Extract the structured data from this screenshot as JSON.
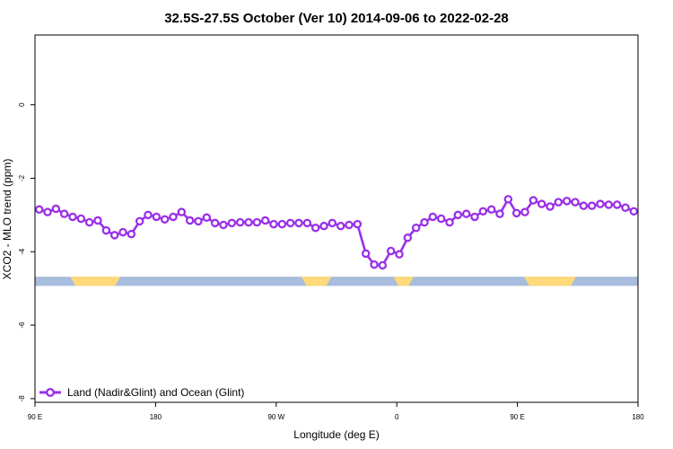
{
  "chart_data": {
    "type": "line",
    "title": "32.5S-27.5S October (Ver 10)   2014-09-06 to 2022-02-28",
    "xlabel": "Longitude (deg E)",
    "ylabel": "XCO2 - MLO trend (ppm)",
    "xlim": [
      90,
      450
    ],
    "ylim": [
      -8.1,
      1.9
    ],
    "x_ticks": [
      {
        "value": 90,
        "label": "90 E"
      },
      {
        "value": 162,
        "label": "180"
      },
      {
        "value": 234,
        "label": "90 W"
      },
      {
        "value": 306,
        "label": "0"
      },
      {
        "value": 378,
        "label": "90 E"
      },
      {
        "value": 450,
        "label": "180"
      }
    ],
    "y_ticks": [
      {
        "value": 0,
        "label": "0"
      },
      {
        "value": -2,
        "label": "-2"
      },
      {
        "value": -4,
        "label": "-4"
      },
      {
        "value": -6,
        "label": "-6"
      },
      {
        "value": -8,
        "label": "-8"
      }
    ],
    "legend_position": "bottom-left",
    "grid": false,
    "colors": {
      "series": "#9b30e8",
      "ocean": "#a8bcdd",
      "land": "#ffd97a"
    },
    "surface_band": {
      "y_range": [
        -4.93,
        -4.68
      ],
      "ocean_color": "#a8bcdd",
      "land_color": "#ffd97a",
      "land_segments": [
        [
          111,
          141
        ],
        [
          249,
          267
        ],
        [
          304,
          316
        ],
        [
          382,
          413
        ]
      ]
    },
    "series": [
      {
        "name": "Land (Nadir&Glint) and Ocean (Glint)",
        "x": [
          92.5,
          97.5,
          102.5,
          107.5,
          112.5,
          117.5,
          122.5,
          127.5,
          132.5,
          137.5,
          142.5,
          147.5,
          152.5,
          157.5,
          162.5,
          167.5,
          172.5,
          177.5,
          182.5,
          187.5,
          192.5,
          197.5,
          202.5,
          207.5,
          212.5,
          217.5,
          222.5,
          227.5,
          232.5,
          237.5,
          242.5,
          247.5,
          252.5,
          257.5,
          262.5,
          267.5,
          272.5,
          277.5,
          282.5,
          287.5,
          292.5,
          297.5,
          302.5,
          307.5,
          312.5,
          317.5,
          322.5,
          327.5,
          332.5,
          337.5,
          342.5,
          347.5,
          352.5,
          357.5,
          362.5,
          367.5,
          372.5,
          377.5,
          382.5,
          387.5,
          392.5,
          397.5,
          402.5,
          407.5,
          412.5,
          417.5,
          422.5,
          427.5,
          432.5,
          437.5,
          442.5,
          447.5
        ],
        "y": [
          -2.85,
          -2.92,
          -2.83,
          -2.97,
          -3.05,
          -3.1,
          -3.2,
          -3.15,
          -3.42,
          -3.55,
          -3.47,
          -3.52,
          -3.17,
          -3.0,
          -3.05,
          -3.12,
          -3.05,
          -2.92,
          -3.15,
          -3.17,
          -3.07,
          -3.22,
          -3.27,
          -3.22,
          -3.2,
          -3.2,
          -3.2,
          -3.15,
          -3.25,
          -3.25,
          -3.22,
          -3.22,
          -3.22,
          -3.35,
          -3.3,
          -3.22,
          -3.3,
          -3.27,
          -3.25,
          -4.05,
          -4.35,
          -4.37,
          -3.98,
          -4.07,
          -3.62,
          -3.35,
          -3.2,
          -3.05,
          -3.1,
          -3.2,
          -3.0,
          -2.97,
          -3.05,
          -2.9,
          -2.85,
          -2.97,
          -2.57,
          -2.95,
          -2.92,
          -2.6,
          -2.7,
          -2.77,
          -2.65,
          -2.62,
          -2.65,
          -2.75,
          -2.75,
          -2.7,
          -2.72,
          -2.72,
          -2.8,
          -2.9
        ]
      }
    ]
  }
}
